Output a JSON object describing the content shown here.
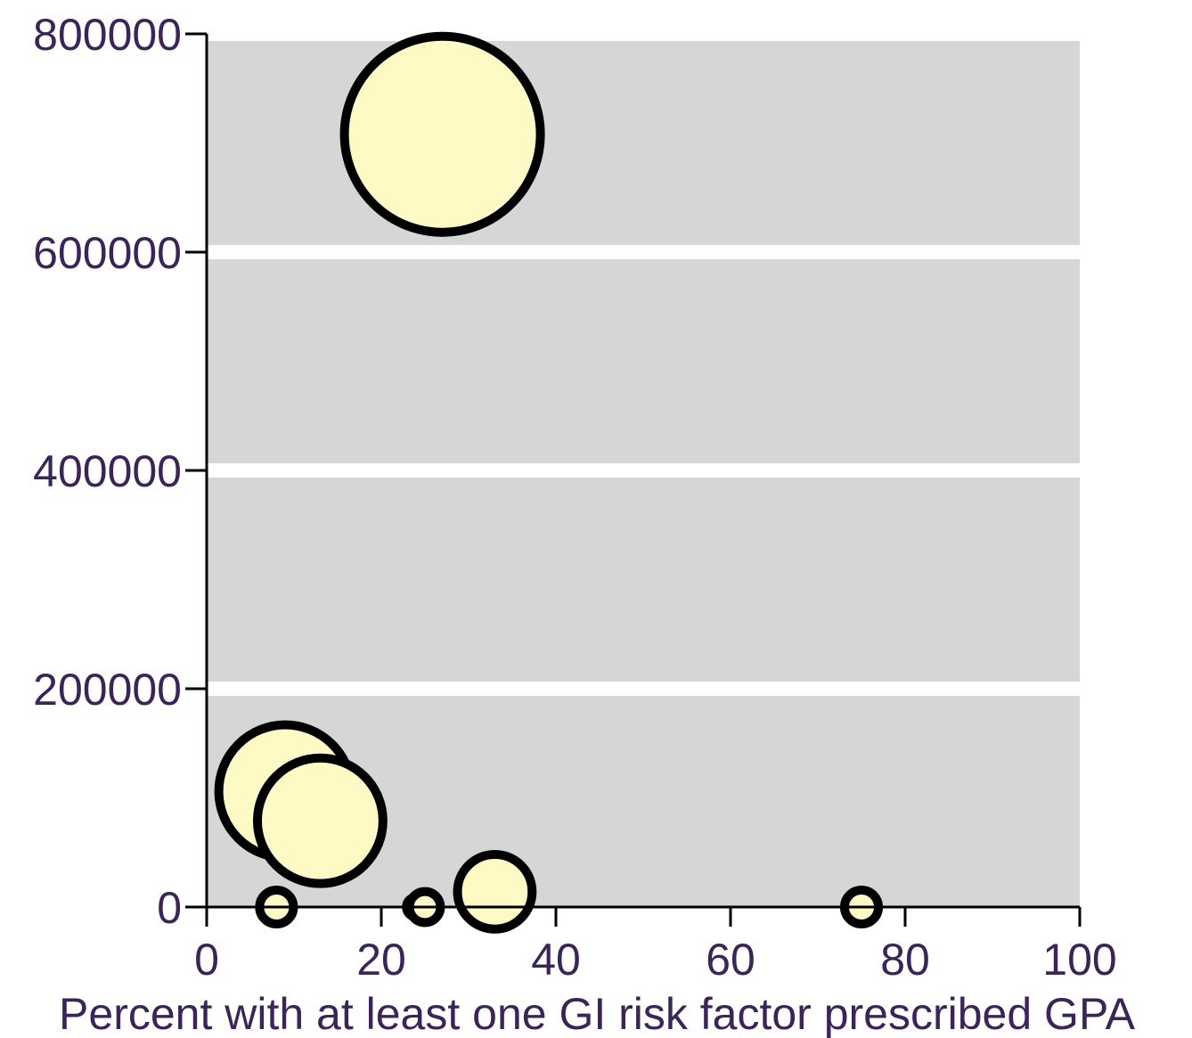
{
  "chart_data": {
    "type": "scatter",
    "subtype": "bubble",
    "title": "",
    "xlabel": "Percent with at least one GI risk factor prescribed GPA",
    "ylabel": "",
    "xlim": [
      0,
      100
    ],
    "ylim": [
      0,
      800000
    ],
    "x_ticks": [
      0,
      20,
      40,
      60,
      80,
      100
    ],
    "y_ticks": [
      0,
      200000,
      400000,
      600000,
      800000
    ],
    "x_tick_labels": [
      "0",
      "20",
      "40",
      "60",
      "80",
      "100"
    ],
    "y_tick_labels": [
      "0",
      "200000",
      "400000",
      "600000",
      "800000"
    ],
    "grid": "horizontal",
    "plot_background": "#d6d6d6",
    "bubble_fill": "#fdfac6",
    "bubble_stroke": "#000000",
    "text_color": "#3a2458",
    "points": [
      {
        "x": 27,
        "y": 708000,
        "size": 1.0
      },
      {
        "x": 9,
        "y": 106000,
        "size": 0.46
      },
      {
        "x": 13,
        "y": 79000,
        "size": 0.41
      },
      {
        "x": 33,
        "y": 14000,
        "size": 0.145
      },
      {
        "x": 8,
        "y": 0,
        "size": 0.03
      },
      {
        "x": 24,
        "y": 0,
        "size": 0.01
      },
      {
        "x": 25,
        "y": 0,
        "size": 0.025
      },
      {
        "x": 75,
        "y": 0,
        "size": 0.03
      }
    ]
  }
}
